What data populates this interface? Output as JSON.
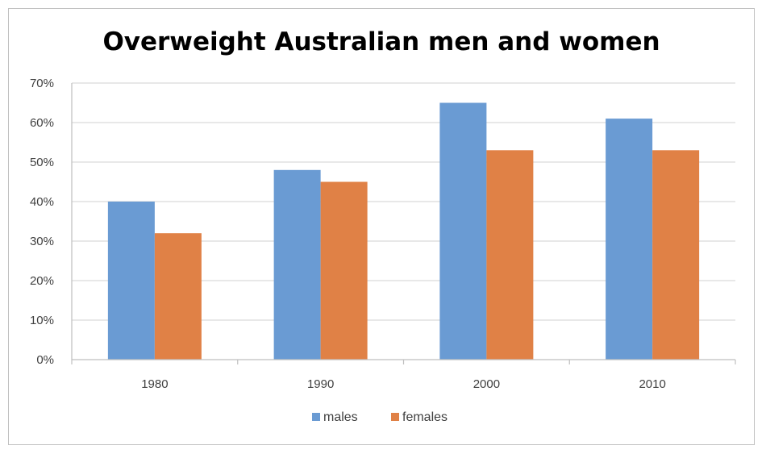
{
  "chart_data": {
    "type": "bar",
    "title": "Overweight Australian men and women",
    "categories": [
      "1980",
      "1990",
      "2000",
      "2010"
    ],
    "series": [
      {
        "name": "males",
        "values": [
          40,
          48,
          65,
          61
        ],
        "color": "#6a9bd3"
      },
      {
        "name": "females",
        "values": [
          32,
          45,
          53,
          53
        ],
        "color": "#e08146"
      }
    ],
    "ylim": [
      0,
      70
    ],
    "yticks": [
      "0%",
      "10%",
      "20%",
      "30%",
      "40%",
      "50%",
      "60%",
      "70%"
    ],
    "ytick_values": [
      0,
      10,
      20,
      30,
      40,
      50,
      60,
      70
    ],
    "xlabel": "",
    "ylabel": "",
    "grid": true,
    "legend_position": "bottom"
  }
}
